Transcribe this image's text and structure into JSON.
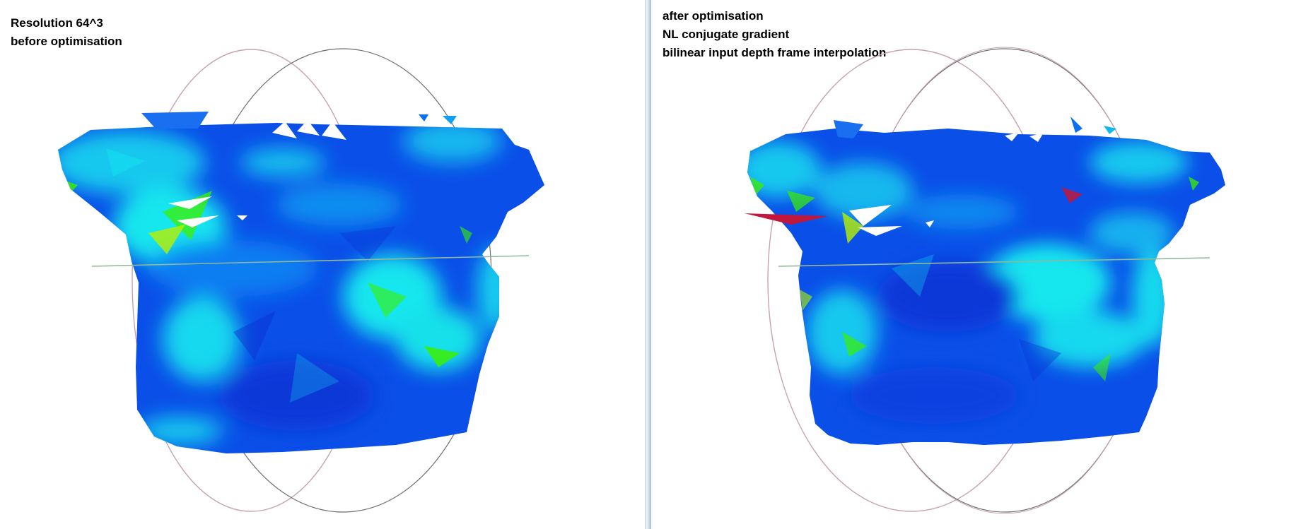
{
  "left_panel": {
    "caption_lines": [
      "Resolution 64^3",
      "before optimisation"
    ]
  },
  "right_panel": {
    "caption_lines": [
      "after optimisation",
      "NL conjugate gradient",
      "bilinear input depth frame interpolation"
    ]
  },
  "colors": {
    "surface_blue": "#0a4fe8",
    "surface_cyan": "#12e6ee",
    "surface_green": "#3cf000",
    "surface_red": "#c0183c",
    "axis_gray": "#6f6f6f",
    "axis_pink": "#c8a0b4",
    "axis_green": "#8fba9a"
  }
}
